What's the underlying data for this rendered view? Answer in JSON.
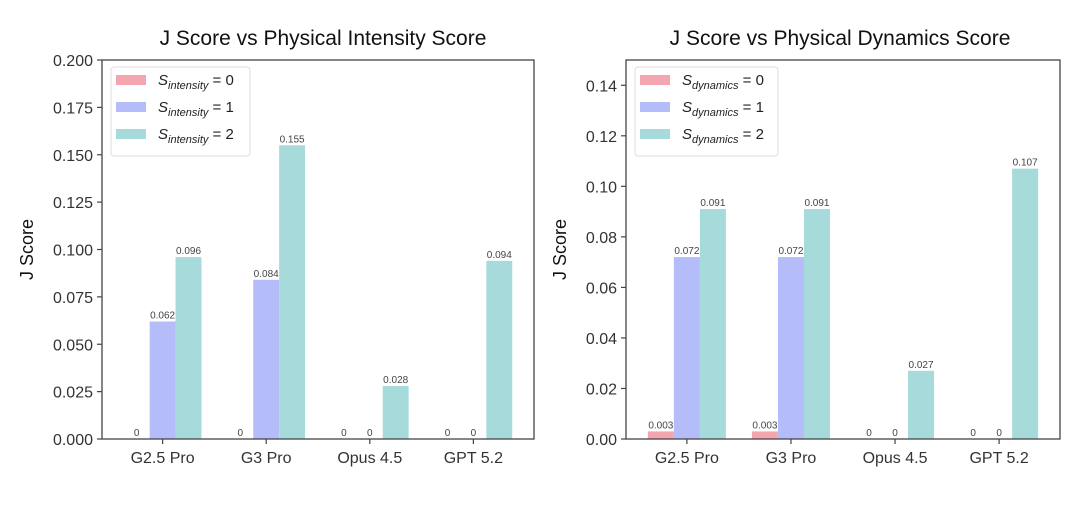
{
  "chart_data": [
    {
      "type": "bar",
      "title": "J Score vs Physical Intensity Score",
      "xlabel": "",
      "ylabel": "J Score",
      "categories": [
        "G2.5 Pro",
        "G3 Pro",
        "Opus 4.5",
        "GPT 5.2"
      ],
      "ylim": [
        0,
        0.2
      ],
      "yticks": [
        0.0,
        0.025,
        0.05,
        0.075,
        0.1,
        0.125,
        0.15,
        0.175,
        0.2
      ],
      "ytick_labels": [
        "0.000",
        "0.025",
        "0.050",
        "0.075",
        "0.100",
        "0.125",
        "0.150",
        "0.175",
        "0.200"
      ],
      "grid": false,
      "legend_position": "top-left",
      "series": [
        {
          "name": "S_intensity = 0",
          "legend_symbol": "S",
          "legend_subscript": "intensity",
          "legend_value": "= 0",
          "color": "#f4a6b0",
          "values": [
            0,
            0,
            0,
            0
          ],
          "labels": [
            "0",
            "0",
            "0",
            "0"
          ]
        },
        {
          "name": "S_intensity = 1",
          "legend_symbol": "S",
          "legend_subscript": "intensity",
          "legend_value": "= 1",
          "color": "#b5bcfa",
          "values": [
            0.062,
            0.084,
            0,
            0
          ],
          "labels": [
            "0.062",
            "0.084",
            "0",
            "0"
          ]
        },
        {
          "name": "S_intensity = 2",
          "legend_symbol": "S",
          "legend_subscript": "intensity",
          "legend_value": "= 2",
          "color": "#a7dbdb",
          "values": [
            0.096,
            0.155,
            0.028,
            0.094
          ],
          "labels": [
            "0.096",
            "0.155",
            "0.028",
            "0.094"
          ]
        }
      ],
      "hide_labels": [
        [
          false,
          false,
          false,
          false
        ],
        [
          false,
          false,
          false,
          false
        ],
        [
          false,
          false,
          false,
          false
        ]
      ],
      "skip_zero_label_series0_where_other": [
        false,
        false,
        false,
        false
      ]
    },
    {
      "type": "bar",
      "title": "J Score vs Physical Dynamics Score",
      "xlabel": "",
      "ylabel": "J Score",
      "categories": [
        "G2.5 Pro",
        "G3 Pro",
        "Opus 4.5",
        "GPT 5.2"
      ],
      "ylim": [
        0,
        0.15
      ],
      "yticks": [
        0.0,
        0.02,
        0.04,
        0.06,
        0.08,
        0.1,
        0.12,
        0.14
      ],
      "ytick_labels": [
        "0.00",
        "0.02",
        "0.04",
        "0.06",
        "0.08",
        "0.10",
        "0.12",
        "0.14"
      ],
      "grid": false,
      "legend_position": "top-left",
      "series": [
        {
          "name": "S_dynamics = 0",
          "legend_symbol": "S",
          "legend_subscript": "dynamics",
          "legend_value": "= 0",
          "color": "#f4a6b0",
          "values": [
            0.003,
            0.003,
            0,
            0
          ],
          "labels": [
            "0.003",
            "0.003",
            "0",
            "0"
          ]
        },
        {
          "name": "S_dynamics = 1",
          "legend_symbol": "S",
          "legend_subscript": "dynamics",
          "legend_value": "= 1",
          "color": "#b5bcfa",
          "values": [
            0.072,
            0.072,
            0,
            0
          ],
          "labels": [
            "0.072",
            "0.072",
            "0",
            "0"
          ]
        },
        {
          "name": "S_dynamics = 2",
          "legend_symbol": "S",
          "legend_subscript": "dynamics",
          "legend_value": "= 2",
          "color": "#a7dbdb",
          "values": [
            0.091,
            0.091,
            0.027,
            0.107
          ],
          "labels": [
            "0.091",
            "0.091",
            "0.027",
            "0.107"
          ]
        }
      ]
    }
  ]
}
